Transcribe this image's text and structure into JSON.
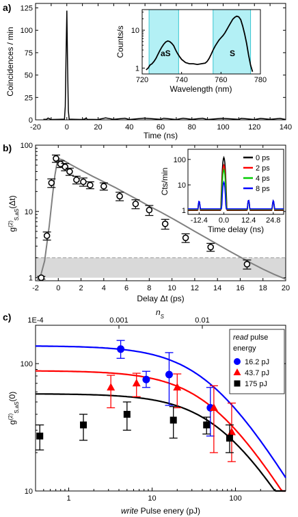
{
  "chart_data": [
    {
      "id": "a",
      "panel_label": "a)",
      "type": "line",
      "xlabel": "Time (ns)",
      "ylabel": "Coincidences / min",
      "xlim": [
        -20,
        140
      ],
      "ylim": [
        0,
        130
      ],
      "xticks": [
        -20,
        -10,
        0,
        10,
        20,
        30,
        40,
        50,
        60,
        70,
        80,
        90,
        100,
        110,
        120,
        130,
        140
      ],
      "xtick_labels": [
        "-20",
        "0",
        "20",
        "40",
        "60",
        "80",
        "100",
        "120",
        "140"
      ],
      "xtick_label_values": [
        -20,
        0,
        20,
        40,
        60,
        80,
        100,
        120,
        140
      ],
      "yticks": [
        0,
        25,
        50,
        75,
        100,
        125
      ],
      "ytick_labels": [
        "0",
        "25",
        "50",
        "75",
        "100",
        "125"
      ],
      "series": [
        {
          "x": [
            -15,
            -13,
            -12,
            -10,
            -5,
            -1.5,
            -1,
            -0.5,
            0,
            0.5,
            1,
            1.5,
            5,
            10,
            12,
            12.4,
            13,
            20,
            24.8,
            30,
            37.2,
            40,
            49.6,
            60,
            62,
            70,
            74.4,
            80,
            86.8,
            90,
            99.2,
            110,
            111.6,
            120,
            124,
            130,
            136.4,
            140
          ],
          "y": [
            0.6,
            0.5,
            2.0,
            0.4,
            0.5,
            0.8,
            15,
            70,
            122,
            60,
            10,
            0.8,
            0.5,
            0.4,
            1.2,
            2.2,
            0.5,
            0.4,
            2.2,
            0.5,
            1.8,
            0.4,
            1.9,
            0.5,
            1.8,
            0.4,
            1.8,
            0.5,
            1.8,
            0.4,
            1.7,
            0.5,
            1.7,
            0.4,
            1.6,
            0.5,
            1.6,
            0.4
          ]
        }
      ],
      "inset": {
        "type": "line",
        "xlabel": "Wavelength (nm)",
        "ylabel": "Counts/s",
        "xlim": [
          720,
          780
        ],
        "ylim": [
          0.7,
          35
        ],
        "yscale": "log",
        "xticks": [
          720,
          740,
          760,
          780
        ],
        "xtick_labels": [
          "720",
          "740",
          "760",
          "780"
        ],
        "yticks": [
          1,
          10
        ],
        "ytick_labels": [
          "1",
          "10"
        ],
        "shaded_regions": [
          {
            "x": [
              723.5,
              738.5
            ],
            "label": "aS"
          },
          {
            "x": [
              756,
              775
            ],
            "label": "S"
          }
        ],
        "series": [
          {
            "x": [
              722,
              723,
              724,
              725,
              726,
              727,
              728,
              729,
              730,
              731,
              732,
              733,
              734,
              735,
              736,
              737,
              738,
              739,
              740,
              742,
              744,
              746,
              748,
              750,
              752,
              753,
              754,
              755,
              756,
              757,
              758,
              759,
              760,
              761,
              762,
              763,
              764,
              765,
              766,
              767,
              768,
              769,
              770,
              771,
              772,
              773,
              774,
              775,
              776
            ],
            "y": [
              0.9,
              1.0,
              1.2,
              1.3,
              1.5,
              1.8,
              2.3,
              2.9,
              3.6,
              4.3,
              4.9,
              5.2,
              5.0,
              4.5,
              3.9,
              3.0,
              2.4,
              2.0,
              1.7,
              1.4,
              1.3,
              1.3,
              1.25,
              1.3,
              1.35,
              1.5,
              1.8,
              2.3,
              3.0,
              3.8,
              4.6,
              5.5,
              6.3,
              7.2,
              8.5,
              10.5,
              13,
              16,
              19.5,
              22,
              23.5,
              22.5,
              19,
              13,
              8,
              4.5,
              2.2,
              1.2,
              0.8
            ]
          }
        ]
      }
    },
    {
      "id": "b",
      "panel_label": "b)",
      "type": "scatter",
      "xlabel": "Delay Δt (ps)",
      "ylabel": "g(2)S,aS(Δt)",
      "ylabel_main": "g",
      "ylabel_sup": "(2)",
      "ylabel_sub": "S,aS",
      "ylabel_tail": "(Δt)",
      "xlim": [
        -2,
        20
      ],
      "ylim": [
        0.9,
        100
      ],
      "yscale": "log",
      "xticks": [
        -2,
        0,
        2,
        4,
        6,
        8,
        10,
        12,
        14,
        16,
        18,
        20
      ],
      "xtick_labels": [
        "-2",
        "0",
        "2",
        "4",
        "6",
        "8",
        "10",
        "12",
        "14",
        "16",
        "18",
        "20"
      ],
      "yticks": [
        1,
        10,
        100
      ],
      "ytick_labels": [
        "1",
        "10",
        "100"
      ],
      "threshold_band": {
        "y": [
          1,
          2
        ]
      },
      "points": {
        "x": [
          -1.5,
          -1.0,
          -0.6,
          -0.2,
          0.2,
          0.6,
          1.0,
          1.6,
          2.2,
          2.8,
          4.0,
          5.4,
          6.8,
          8.0,
          9.4,
          11.2,
          13.4,
          16.6
        ],
        "y": [
          1.0,
          4.3,
          27,
          63,
          52,
          47,
          40,
          30,
          28,
          25,
          24,
          17,
          13,
          10.5,
          6.5,
          4.0,
          2.9,
          1.6
        ],
        "err": [
          0.05,
          0.6,
          4,
          8,
          6,
          6,
          5,
          4,
          4,
          3,
          3,
          2.5,
          2,
          1.8,
          1.1,
          0.6,
          0.4,
          0.25
        ]
      },
      "fit": {
        "x": [
          -1.6,
          -1.2,
          -0.8,
          -0.5,
          -0.3,
          -0.1,
          0.1,
          0.4,
          1,
          2,
          3,
          4,
          5,
          6,
          7,
          8,
          9,
          10,
          11,
          12,
          13,
          14,
          15,
          16,
          17,
          18,
          19,
          20
        ],
        "y": [
          1.0,
          1.8,
          6,
          18,
          35,
          55,
          62,
          60,
          52,
          42,
          34,
          28,
          23,
          18.5,
          15,
          12,
          9.8,
          7.9,
          6.3,
          5.0,
          4.0,
          3.2,
          2.55,
          2.05,
          1.65,
          1.35,
          1.12,
          0.95
        ]
      },
      "inset": {
        "type": "line",
        "xlabel": "Time delay (ns)",
        "ylabel": "Cts/min",
        "xlim": [
          -18,
          30
        ],
        "ylim": [
          0.7,
          250
        ],
        "yscale": "log",
        "xticks": [
          -12.4,
          0.0,
          12.4,
          24.8
        ],
        "xtick_labels": [
          "-12.4",
          "0.0",
          "12.4",
          "24.8"
        ],
        "yticks": [
          1,
          10,
          100
        ],
        "ytick_labels": [
          "1",
          "10",
          "100"
        ],
        "legend": [
          "0 ps",
          "2 ps",
          "4 ps",
          "8 ps"
        ],
        "series": [
          {
            "name": "0 ps",
            "color": "#000000",
            "peaks": [
              1.6,
              2.2,
              120,
              2.5,
              2.4
            ]
          },
          {
            "name": "2 ps",
            "color": "#ff0000",
            "peaks": [
              1.5,
              2.0,
              60,
              2.4,
              2.2
            ]
          },
          {
            "name": "4 ps",
            "color": "#00cc00",
            "peaks": [
              1.5,
              2.1,
              40,
              2.3,
              2.3
            ]
          },
          {
            "name": "8 ps",
            "color": "#0000ff",
            "peaks": [
              1.7,
              2.3,
              13,
              2.5,
              2.4
            ]
          }
        ],
        "peak_x": [
          -24.8,
          -12.4,
          0.0,
          12.4,
          24.8
        ]
      }
    },
    {
      "id": "c",
      "panel_label": "c)",
      "type": "scatter",
      "xlabel_italic": "write",
      "xlabel_rest": " Pulse enery (pJ)",
      "ylabel_main": "g",
      "ylabel_sup": "(2)",
      "ylabel_sub": "S,aS",
      "ylabel_tail": "(0)",
      "top_axis_label": "n",
      "top_axis_label_sub": "S",
      "xlim": [
        0.4,
        400
      ],
      "ylim": [
        10,
        200
      ],
      "xscale": "log",
      "yscale": "log",
      "xticks": [
        1,
        10,
        100
      ],
      "xtick_labels": [
        "1",
        "10",
        "100"
      ],
      "yticks": [
        10,
        100
      ],
      "ytick_labels": [
        "10",
        "100"
      ],
      "top_xticks_at": [
        0.4,
        4,
        40
      ],
      "top_xtick_labels": [
        "1E-4",
        "0.001",
        "0.01"
      ],
      "legend_title_italic": "read",
      "legend_title_rest": " pulse",
      "legend_title_line2": "energy",
      "series": [
        {
          "name": "16.2 pJ",
          "color": "#0000ff",
          "marker": "circle",
          "x": [
            4.2,
            8.5,
            16,
            50
          ],
          "y": [
            130,
            75,
            82,
            45
          ],
          "err_lo": [
            20,
            10,
            35,
            18
          ],
          "err_hi": [
            22,
            12,
            40,
            20
          ],
          "fit": {
            "y0": 138,
            "k": 0.02
          }
        },
        {
          "name": "43.7 pJ",
          "color": "#ff0000",
          "marker": "triangle",
          "x": [
            3.2,
            6.5,
            20,
            55,
            90
          ],
          "y": [
            65,
            70,
            65,
            45,
            29
          ],
          "err_lo": [
            20,
            15,
            20,
            25,
            12
          ],
          "err_hi": [
            16,
            14,
            18,
            22,
            20
          ],
          "fit": {
            "y0": 88,
            "k": 0.018
          }
        },
        {
          "name": "175 pJ",
          "color": "#000000",
          "marker": "square",
          "x": [
            0.45,
            1.5,
            5,
            18,
            45,
            85
          ],
          "y": [
            27,
            33,
            40,
            36,
            33,
            26
          ],
          "err_lo": [
            6,
            8,
            10,
            10,
            5,
            6
          ],
          "err_hi": [
            6,
            7,
            10,
            10,
            5,
            7
          ],
          "fit": {
            "y0": 58,
            "k": 0.014
          }
        }
      ]
    }
  ],
  "inset_labels": {
    "aS": "aS",
    "S": "S"
  }
}
